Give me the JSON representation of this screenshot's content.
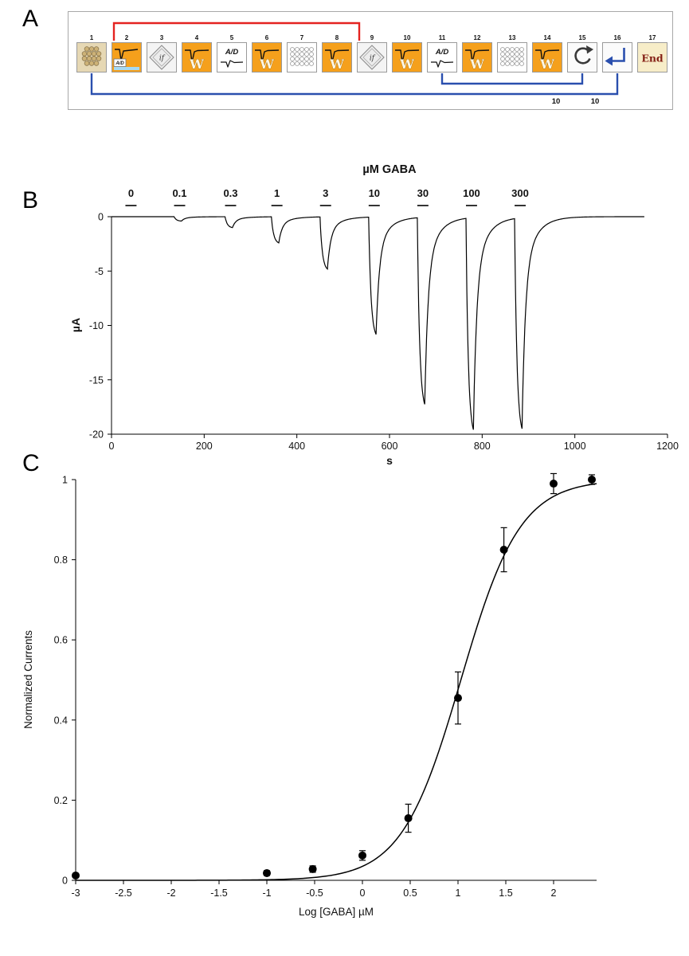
{
  "figure": {
    "panels": [
      {
        "label": "A"
      },
      {
        "label": "B"
      },
      {
        "label": "C"
      }
    ]
  },
  "panelA": {
    "icons": [
      {
        "num": "1",
        "type": "plate-round"
      },
      {
        "num": "2",
        "type": "trace-ad",
        "label": "A/D"
      },
      {
        "num": "3",
        "type": "if-diamond",
        "label": "if"
      },
      {
        "num": "4",
        "type": "wave",
        "label": "W"
      },
      {
        "num": "5",
        "type": "ad",
        "label": "A/D"
      },
      {
        "num": "6",
        "type": "wave",
        "label": "W"
      },
      {
        "num": "7",
        "type": "plate-grid"
      },
      {
        "num": "8",
        "type": "wave",
        "label": "W"
      },
      {
        "num": "9",
        "type": "if-diamond",
        "label": "if"
      },
      {
        "num": "10",
        "type": "wave",
        "label": "W"
      },
      {
        "num": "11",
        "type": "ad",
        "label": "A/D"
      },
      {
        "num": "12",
        "type": "wave",
        "label": "W"
      },
      {
        "num": "13",
        "type": "plate-grid"
      },
      {
        "num": "14",
        "type": "wave",
        "label": "W"
      },
      {
        "num": "15",
        "type": "loop-arrow"
      },
      {
        "num": "16",
        "type": "return-arrow"
      },
      {
        "num": "17",
        "type": "end",
        "label": "End"
      }
    ],
    "loop_counts": [
      "10",
      "10"
    ],
    "loops": [
      {
        "from": 2,
        "to": 9,
        "side": "top",
        "color": "red"
      },
      {
        "from": 11,
        "to": 15,
        "side": "bottom",
        "color": "blue",
        "count": "10"
      },
      {
        "from": 1,
        "to": 16,
        "side": "bottom",
        "color": "blue",
        "count": "10"
      }
    ],
    "colors": {
      "orange": "#f5a01c",
      "red": "#e42320",
      "blue": "#2a4fae",
      "plate_bg": "#e6d8b4",
      "end_bg": "#f7edc8",
      "blue_strip": "#a6d9f2"
    }
  },
  "chart_data": [
    {
      "panel": "B",
      "type": "line",
      "title": "µM GABA",
      "xlabel": "s",
      "ylabel": "µA",
      "xlim": [
        0,
        1200
      ],
      "ylim": [
        -20,
        0
      ],
      "xticks": [
        0,
        200,
        400,
        600,
        800,
        1000,
        1200
      ],
      "yticks": [
        0,
        -5,
        -10,
        -15,
        -20
      ],
      "application_bar_seconds": 24,
      "trace_end": 1150,
      "applications": [
        {
          "conc": "0",
          "time": 30,
          "peak": 0
        },
        {
          "conc": "0.1",
          "time": 135,
          "peak": -0.4
        },
        {
          "conc": "0.3",
          "time": 245,
          "peak": -1.0
        },
        {
          "conc": "1",
          "time": 345,
          "peak": -2.4
        },
        {
          "conc": "3",
          "time": 450,
          "peak": -4.8
        },
        {
          "conc": "10",
          "time": 555,
          "peak": -10.8
        },
        {
          "conc": "30",
          "time": 660,
          "peak": -17.2
        },
        {
          "conc": "100",
          "time": 765,
          "peak": -19.5
        },
        {
          "conc": "300",
          "time": 870,
          "peak": -19.4
        }
      ]
    },
    {
      "panel": "C",
      "type": "scatter",
      "xlabel": "Log [GABA]  µM",
      "ylabel": "Normalized Currents",
      "xlim": [
        -3,
        2.45
      ],
      "ylim": [
        0,
        1
      ],
      "xticks": [
        -3,
        -2.5,
        -2,
        -1.5,
        -1,
        -0.5,
        0,
        0.5,
        1,
        1.5,
        2
      ],
      "yticks": [
        0,
        0.2,
        0.4,
        0.6,
        0.8,
        1
      ],
      "points": [
        {
          "x": -3,
          "y": 0.012,
          "err": 0.004
        },
        {
          "x": -1,
          "y": 0.018,
          "err": 0.006
        },
        {
          "x": -0.52,
          "y": 0.028,
          "err": 0.008
        },
        {
          "x": 0,
          "y": 0.062,
          "err": 0.012
        },
        {
          "x": 0.48,
          "y": 0.155,
          "err": 0.035
        },
        {
          "x": 1,
          "y": 0.455,
          "err": 0.065
        },
        {
          "x": 1.48,
          "y": 0.825,
          "err": 0.055
        },
        {
          "x": 2,
          "y": 0.99,
          "err": 0.025
        },
        {
          "x": 2.4,
          "y": 1.0,
          "err": 0.012
        }
      ],
      "fit": {
        "model": "hill",
        "logEC50": 1.03,
        "hill": 1.4,
        "top": 1.0,
        "bottom": 0.0
      }
    }
  ]
}
